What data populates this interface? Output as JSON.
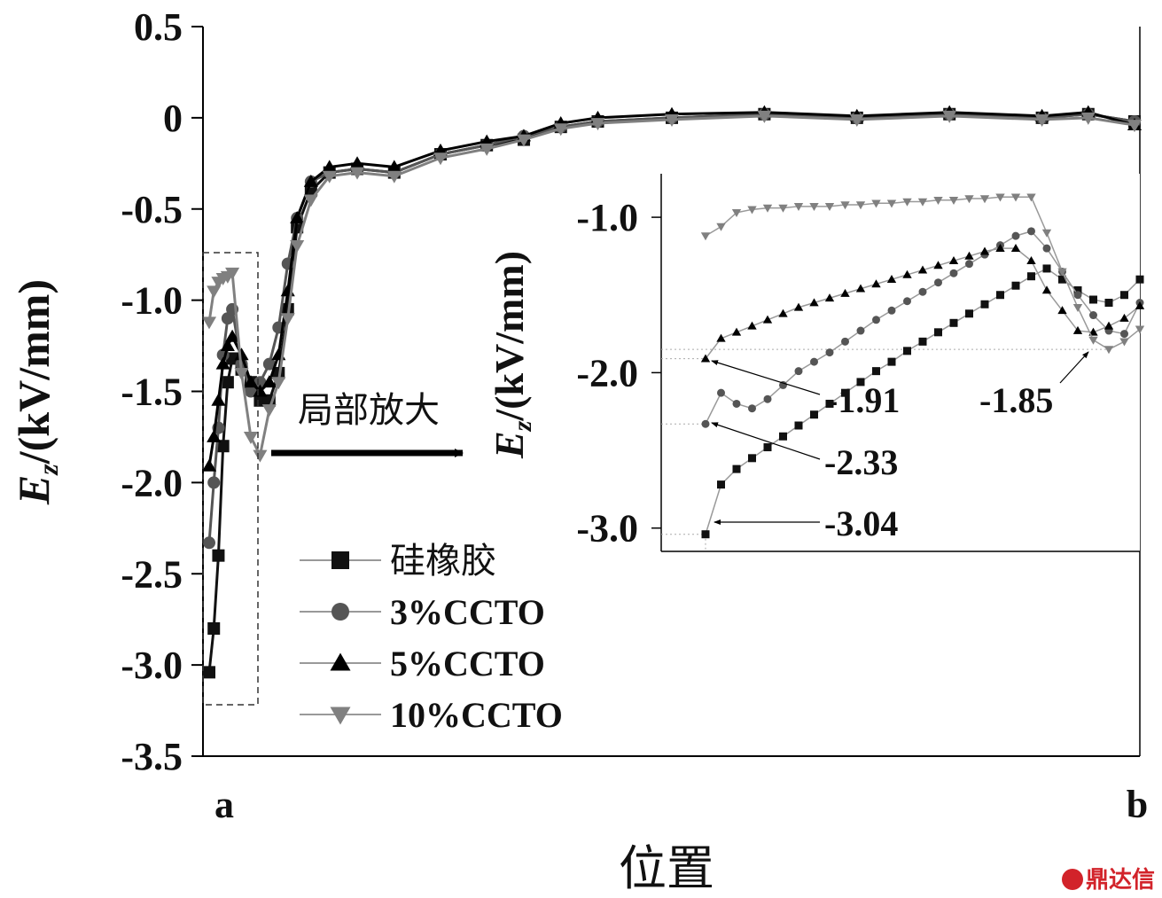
{
  "chart_data": {
    "type": "line",
    "main": {
      "xlabel": "位置",
      "ylabel_main": "E",
      "ylabel_sub": "z",
      "ylabel_unit": "/(kV/mm)",
      "x_tick_labels": [
        "a",
        "b"
      ],
      "ylim": [
        -3.5,
        0.5
      ],
      "y_ticks": [
        "0.5",
        "0",
        "-0.5",
        "-1.0",
        "-1.5",
        "-2.0",
        "-2.5",
        "-3.0",
        "-3.5"
      ],
      "legend": [
        "硅橡胶",
        "3%CCTO",
        "5%CCTO",
        "10%CCTO"
      ],
      "legend_position": "bottom-left",
      "zoom_arrow_label": "局部放大",
      "series": [
        {
          "name": "硅橡胶",
          "marker": "square",
          "color": "#111111",
          "points": [
            [
              0.0,
              -3.04
            ],
            [
              0.005,
              -2.8
            ],
            [
              0.01,
              -2.4
            ],
            [
              0.015,
              -1.8
            ],
            [
              0.02,
              -1.45
            ],
            [
              0.025,
              -1.32
            ],
            [
              0.035,
              -1.38
            ],
            [
              0.045,
              -1.45
            ],
            [
              0.055,
              -1.55
            ],
            [
              0.065,
              -1.55
            ],
            [
              0.075,
              -1.4
            ],
            [
              0.085,
              -1.05
            ],
            [
              0.095,
              -0.6
            ],
            [
              0.11,
              -0.4
            ],
            [
              0.13,
              -0.3
            ],
            [
              0.16,
              -0.28
            ],
            [
              0.2,
              -0.3
            ],
            [
              0.25,
              -0.2
            ],
            [
              0.3,
              -0.15
            ],
            [
              0.34,
              -0.12
            ],
            [
              0.38,
              -0.05
            ],
            [
              0.42,
              -0.02
            ],
            [
              0.5,
              0.0
            ],
            [
              0.6,
              0.02
            ],
            [
              0.7,
              0.0
            ],
            [
              0.8,
              0.02
            ],
            [
              0.9,
              0.0
            ],
            [
              0.95,
              0.02
            ],
            [
              1.0,
              -0.02
            ]
          ]
        },
        {
          "name": "3%CCTO",
          "marker": "circle",
          "color": "#555555",
          "points": [
            [
              0.0,
              -2.33
            ],
            [
              0.005,
              -2.0
            ],
            [
              0.01,
              -1.7
            ],
            [
              0.015,
              -1.3
            ],
            [
              0.02,
              -1.1
            ],
            [
              0.025,
              -1.05
            ],
            [
              0.035,
              -1.35
            ],
            [
              0.045,
              -1.5
            ],
            [
              0.055,
              -1.45
            ],
            [
              0.065,
              -1.35
            ],
            [
              0.075,
              -1.15
            ],
            [
              0.085,
              -0.8
            ],
            [
              0.095,
              -0.55
            ],
            [
              0.11,
              -0.35
            ],
            [
              0.13,
              -0.3
            ],
            [
              0.16,
              -0.28
            ],
            [
              0.2,
              -0.3
            ],
            [
              0.25,
              -0.2
            ],
            [
              0.3,
              -0.15
            ],
            [
              0.34,
              -0.1
            ],
            [
              0.38,
              -0.05
            ],
            [
              0.42,
              -0.02
            ],
            [
              0.5,
              0.0
            ],
            [
              0.6,
              0.02
            ],
            [
              0.7,
              0.0
            ],
            [
              0.8,
              0.02
            ],
            [
              0.9,
              0.0
            ],
            [
              0.95,
              0.02
            ],
            [
              1.0,
              -0.02
            ]
          ]
        },
        {
          "name": "5%CCTO",
          "marker": "triangle-up",
          "color": "#000000",
          "points": [
            [
              0.0,
              -1.91
            ],
            [
              0.005,
              -1.75
            ],
            [
              0.01,
              -1.55
            ],
            [
              0.015,
              -1.35
            ],
            [
              0.02,
              -1.25
            ],
            [
              0.025,
              -1.2
            ],
            [
              0.035,
              -1.3
            ],
            [
              0.045,
              -1.45
            ],
            [
              0.055,
              -1.5
            ],
            [
              0.065,
              -1.45
            ],
            [
              0.075,
              -1.3
            ],
            [
              0.085,
              -0.95
            ],
            [
              0.095,
              -0.55
            ],
            [
              0.11,
              -0.35
            ],
            [
              0.13,
              -0.27
            ],
            [
              0.16,
              -0.25
            ],
            [
              0.2,
              -0.27
            ],
            [
              0.25,
              -0.18
            ],
            [
              0.3,
              -0.13
            ],
            [
              0.34,
              -0.1
            ],
            [
              0.38,
              -0.03
            ],
            [
              0.42,
              0.0
            ],
            [
              0.5,
              0.02
            ],
            [
              0.6,
              0.03
            ],
            [
              0.7,
              0.01
            ],
            [
              0.8,
              0.03
            ],
            [
              0.9,
              0.01
            ],
            [
              0.95,
              0.03
            ],
            [
              1.0,
              -0.04
            ]
          ]
        },
        {
          "name": "10%CCTO",
          "marker": "triangle-down",
          "color": "#808080",
          "points": [
            [
              0.0,
              -1.12
            ],
            [
              0.005,
              -0.95
            ],
            [
              0.01,
              -0.9
            ],
            [
              0.015,
              -0.88
            ],
            [
              0.02,
              -0.87
            ],
            [
              0.025,
              -0.85
            ],
            [
              0.035,
              -1.4
            ],
            [
              0.045,
              -1.75
            ],
            [
              0.055,
              -1.85
            ],
            [
              0.065,
              -1.6
            ],
            [
              0.075,
              -1.45
            ],
            [
              0.085,
              -1.1
            ],
            [
              0.095,
              -0.7
            ],
            [
              0.11,
              -0.45
            ],
            [
              0.13,
              -0.32
            ],
            [
              0.16,
              -0.3
            ],
            [
              0.2,
              -0.32
            ],
            [
              0.25,
              -0.22
            ],
            [
              0.3,
              -0.17
            ],
            [
              0.34,
              -0.12
            ],
            [
              0.38,
              -0.06
            ],
            [
              0.42,
              -0.03
            ],
            [
              0.5,
              -0.01
            ],
            [
              0.6,
              0.01
            ],
            [
              0.7,
              -0.01
            ],
            [
              0.8,
              0.01
            ],
            [
              0.9,
              -0.01
            ],
            [
              0.95,
              0.0
            ],
            [
              1.0,
              -0.04
            ]
          ]
        }
      ]
    },
    "inset": {
      "ylabel_main": "E",
      "ylabel_sub": "z",
      "ylabel_unit": "/(kV/mm)",
      "ylim": [
        -3.15,
        -0.72
      ],
      "y_ticks": [
        "-1.0",
        "-2.0",
        "-3.0"
      ],
      "annotations": [
        "-1.91",
        "-2.33",
        "-3.04",
        "-1.85"
      ],
      "series": [
        {
          "name": "硅橡胶",
          "marker": "square",
          "color": "#111111",
          "points": [
            [
              0,
              -3.04
            ],
            [
              1,
              -2.72
            ],
            [
              2,
              -2.62
            ],
            [
              3,
              -2.55
            ],
            [
              4,
              -2.48
            ],
            [
              5,
              -2.41
            ],
            [
              6,
              -2.34
            ],
            [
              7,
              -2.27
            ],
            [
              8,
              -2.2
            ],
            [
              9,
              -2.13
            ],
            [
              10,
              -2.06
            ],
            [
              11,
              -1.99
            ],
            [
              12,
              -1.93
            ],
            [
              13,
              -1.86
            ],
            [
              14,
              -1.8
            ],
            [
              15,
              -1.74
            ],
            [
              16,
              -1.68
            ],
            [
              17,
              -1.62
            ],
            [
              18,
              -1.56
            ],
            [
              19,
              -1.5
            ],
            [
              20,
              -1.44
            ],
            [
              21,
              -1.38
            ],
            [
              22,
              -1.33
            ],
            [
              23,
              -1.4
            ],
            [
              24,
              -1.47
            ],
            [
              25,
              -1.53
            ],
            [
              26,
              -1.55
            ],
            [
              27,
              -1.5
            ],
            [
              28,
              -1.4
            ]
          ]
        },
        {
          "name": "3%CCTO",
          "marker": "circle",
          "color": "#555555",
          "points": [
            [
              0,
              -2.33
            ],
            [
              1,
              -2.13
            ],
            [
              2,
              -2.2
            ],
            [
              3,
              -2.23
            ],
            [
              4,
              -2.17
            ],
            [
              5,
              -2.08
            ],
            [
              6,
              -1.99
            ],
            [
              7,
              -1.93
            ],
            [
              8,
              -1.87
            ],
            [
              9,
              -1.8
            ],
            [
              10,
              -1.73
            ],
            [
              11,
              -1.66
            ],
            [
              12,
              -1.6
            ],
            [
              13,
              -1.54
            ],
            [
              14,
              -1.48
            ],
            [
              15,
              -1.42
            ],
            [
              16,
              -1.36
            ],
            [
              17,
              -1.3
            ],
            [
              18,
              -1.24
            ],
            [
              19,
              -1.18
            ],
            [
              20,
              -1.12
            ],
            [
              21,
              -1.09
            ],
            [
              22,
              -1.2
            ],
            [
              23,
              -1.35
            ],
            [
              24,
              -1.5
            ],
            [
              25,
              -1.63
            ],
            [
              26,
              -1.73
            ],
            [
              27,
              -1.75
            ],
            [
              28,
              -1.55
            ]
          ]
        },
        {
          "name": "5%CCTO",
          "marker": "triangle-up",
          "color": "#000000",
          "points": [
            [
              0,
              -1.91
            ],
            [
              1,
              -1.78
            ],
            [
              2,
              -1.74
            ],
            [
              3,
              -1.7
            ],
            [
              4,
              -1.66
            ],
            [
              5,
              -1.62
            ],
            [
              6,
              -1.58
            ],
            [
              7,
              -1.55
            ],
            [
              8,
              -1.52
            ],
            [
              9,
              -1.49
            ],
            [
              10,
              -1.46
            ],
            [
              11,
              -1.43
            ],
            [
              12,
              -1.4
            ],
            [
              13,
              -1.37
            ],
            [
              14,
              -1.34
            ],
            [
              15,
              -1.31
            ],
            [
              16,
              -1.28
            ],
            [
              17,
              -1.25
            ],
            [
              18,
              -1.22
            ],
            [
              19,
              -1.2
            ],
            [
              20,
              -1.2
            ],
            [
              21,
              -1.28
            ],
            [
              22,
              -1.47
            ],
            [
              23,
              -1.6
            ],
            [
              24,
              -1.73
            ],
            [
              25,
              -1.74
            ],
            [
              26,
              -1.7
            ],
            [
              27,
              -1.65
            ],
            [
              28,
              -1.57
            ]
          ]
        },
        {
          "name": "10%CCTO",
          "marker": "triangle-down",
          "color": "#808080",
          "points": [
            [
              0,
              -1.12
            ],
            [
              1,
              -1.06
            ],
            [
              2,
              -0.97
            ],
            [
              3,
              -0.95
            ],
            [
              4,
              -0.94
            ],
            [
              5,
              -0.94
            ],
            [
              6,
              -0.93
            ],
            [
              7,
              -0.93
            ],
            [
              8,
              -0.93
            ],
            [
              9,
              -0.92
            ],
            [
              10,
              -0.92
            ],
            [
              11,
              -0.91
            ],
            [
              12,
              -0.91
            ],
            [
              13,
              -0.9
            ],
            [
              14,
              -0.9
            ],
            [
              15,
              -0.89
            ],
            [
              16,
              -0.89
            ],
            [
              17,
              -0.88
            ],
            [
              18,
              -0.88
            ],
            [
              19,
              -0.87
            ],
            [
              20,
              -0.87
            ],
            [
              21,
              -0.87
            ],
            [
              22,
              -1.1
            ],
            [
              23,
              -1.35
            ],
            [
              24,
              -1.58
            ],
            [
              25,
              -1.79
            ],
            [
              26,
              -1.85
            ],
            [
              27,
              -1.8
            ],
            [
              28,
              -1.72
            ]
          ]
        }
      ]
    }
  },
  "watermark": "鼎达信"
}
